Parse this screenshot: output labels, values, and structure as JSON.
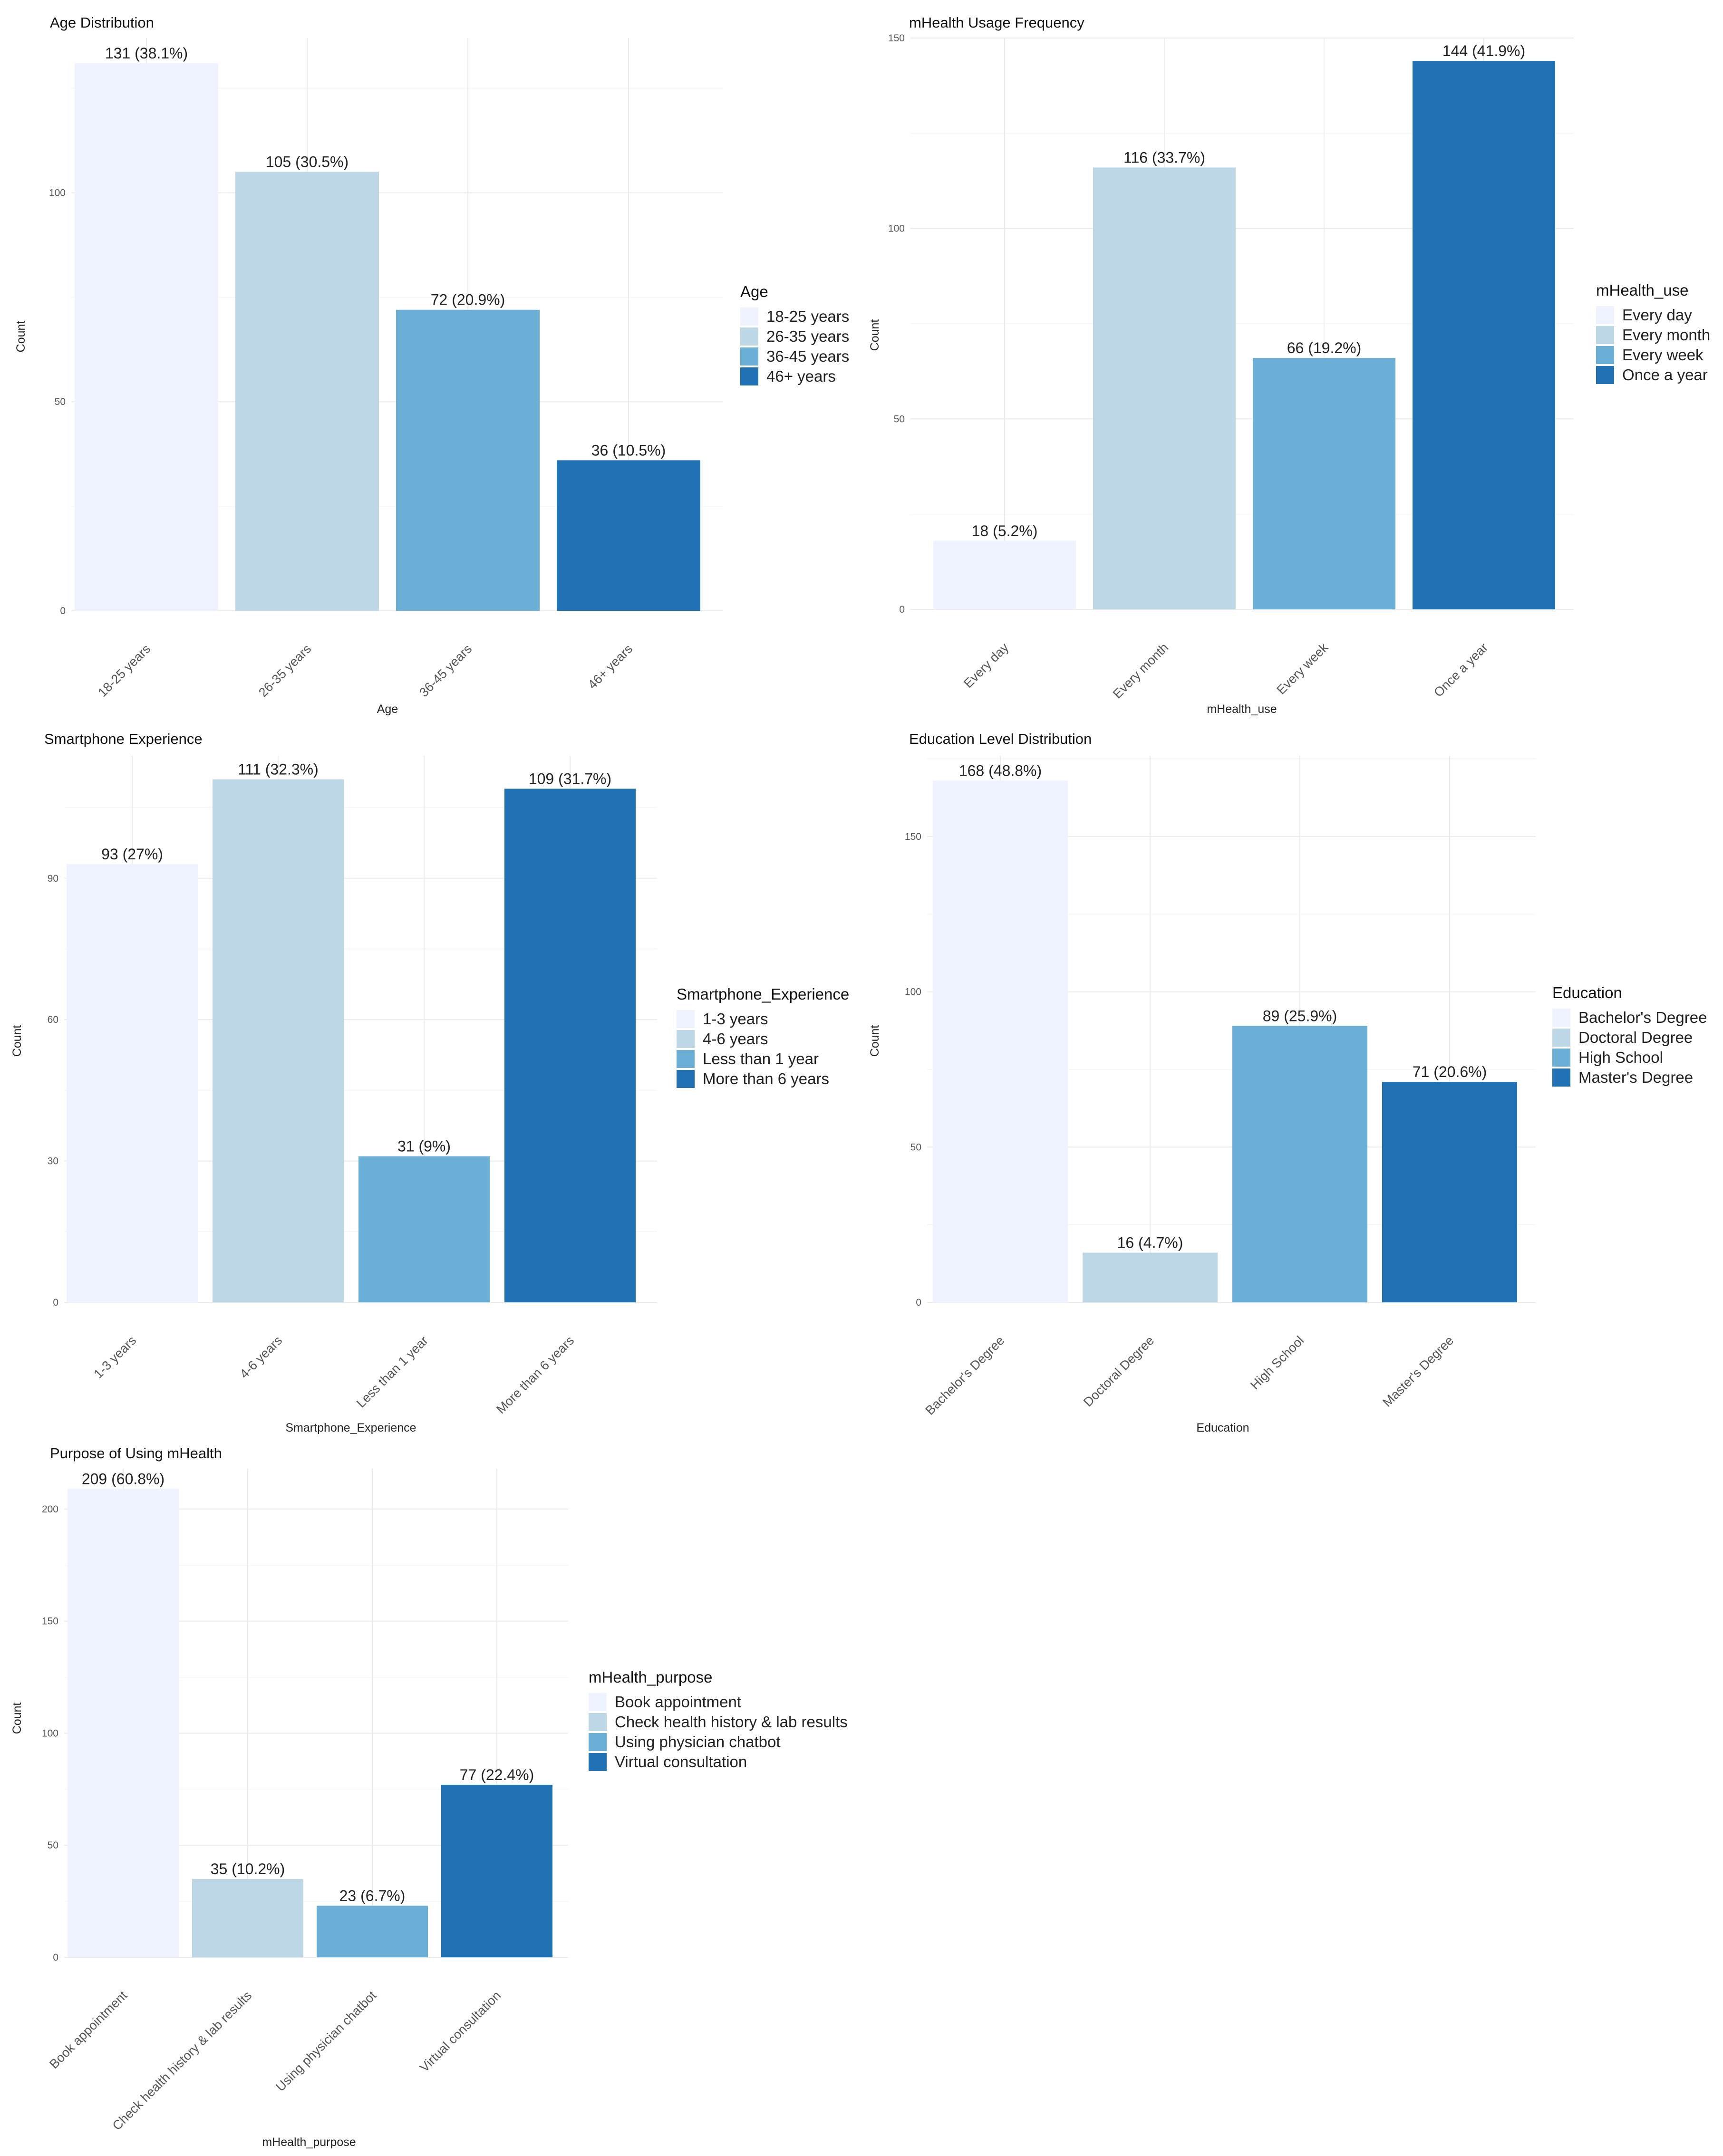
{
  "palette": [
    "#eff3ff",
    "#bdd7e7",
    "#6baed6",
    "#2171b5"
  ],
  "chart_data": [
    {
      "type": "bar",
      "title": "Age Distribution",
      "xlabel": "Age",
      "ylabel": "Count",
      "categories": [
        "18-25 years",
        "26-35 years",
        "36-45 years",
        "46+ years"
      ],
      "values": [
        131,
        105,
        72,
        36
      ],
      "data_labels": [
        "131 (38.1%)",
        "105 (30.5%)",
        "72 (20.9%)",
        "36 (10.5%)"
      ],
      "y_ticks": [
        0,
        50,
        100
      ],
      "ylim": [
        0,
        137
      ],
      "legend_title": "Age",
      "legend_position": "right",
      "grid": true
    },
    {
      "type": "bar",
      "title": "mHealth Usage Frequency",
      "xlabel": "mHealth_use",
      "ylabel": "Count",
      "categories": [
        "Every day",
        "Every month",
        "Every week",
        "Once a year"
      ],
      "values": [
        18,
        116,
        66,
        144
      ],
      "data_labels": [
        "18 (5.2%)",
        "116 (33.7%)",
        "66 (19.2%)",
        "144 (41.9%)"
      ],
      "y_ticks": [
        0,
        50,
        100,
        150
      ],
      "ylim": [
        0,
        150
      ],
      "legend_title": "mHealth_use",
      "legend_position": "right",
      "grid": true
    },
    {
      "type": "bar",
      "title": "Smartphone Experience",
      "xlabel": "Smartphone_Experience",
      "ylabel": "Count",
      "categories": [
        "1-3 years",
        "4-6 years",
        "Less than 1 year",
        "More than 6 years"
      ],
      "values": [
        93,
        111,
        31,
        109
      ],
      "data_labels": [
        "93 (27%)",
        "111 (32.3%)",
        "31 (9%)",
        "109 (31.7%)"
      ],
      "y_ticks": [
        0,
        30,
        60,
        90
      ],
      "ylim": [
        0,
        116
      ],
      "legend_title": "Smartphone_Experience",
      "legend_position": "right",
      "grid": true
    },
    {
      "type": "bar",
      "title": "Education Level Distribution",
      "xlabel": "Education",
      "ylabel": "Count",
      "categories": [
        "Bachelor's Degree",
        "Doctoral Degree",
        "High School",
        "Master's Degree"
      ],
      "values": [
        168,
        16,
        89,
        71
      ],
      "data_labels": [
        "168 (48.8%)",
        "16 (4.7%)",
        "89 (25.9%)",
        "71 (20.6%)"
      ],
      "y_ticks": [
        0,
        50,
        100,
        150
      ],
      "ylim": [
        0,
        176
      ],
      "legend_title": "Education",
      "legend_position": "right",
      "grid": true
    },
    {
      "type": "bar",
      "title": "Purpose of Using mHealth",
      "xlabel": "mHealth_purpose",
      "ylabel": "Count",
      "categories": [
        "Book appointment",
        "Check health history & lab results",
        "Using physician chatbot",
        "Virtual consultation"
      ],
      "values": [
        209,
        35,
        23,
        77
      ],
      "data_labels": [
        "209 (60.8%)",
        "35 (10.2%)",
        "23 (6.7%)",
        "77 (22.4%)"
      ],
      "y_ticks": [
        0,
        50,
        100,
        150,
        200
      ],
      "ylim": [
        0,
        218
      ],
      "legend_title": "mHealth_purpose",
      "legend_position": "right",
      "grid": true
    }
  ]
}
